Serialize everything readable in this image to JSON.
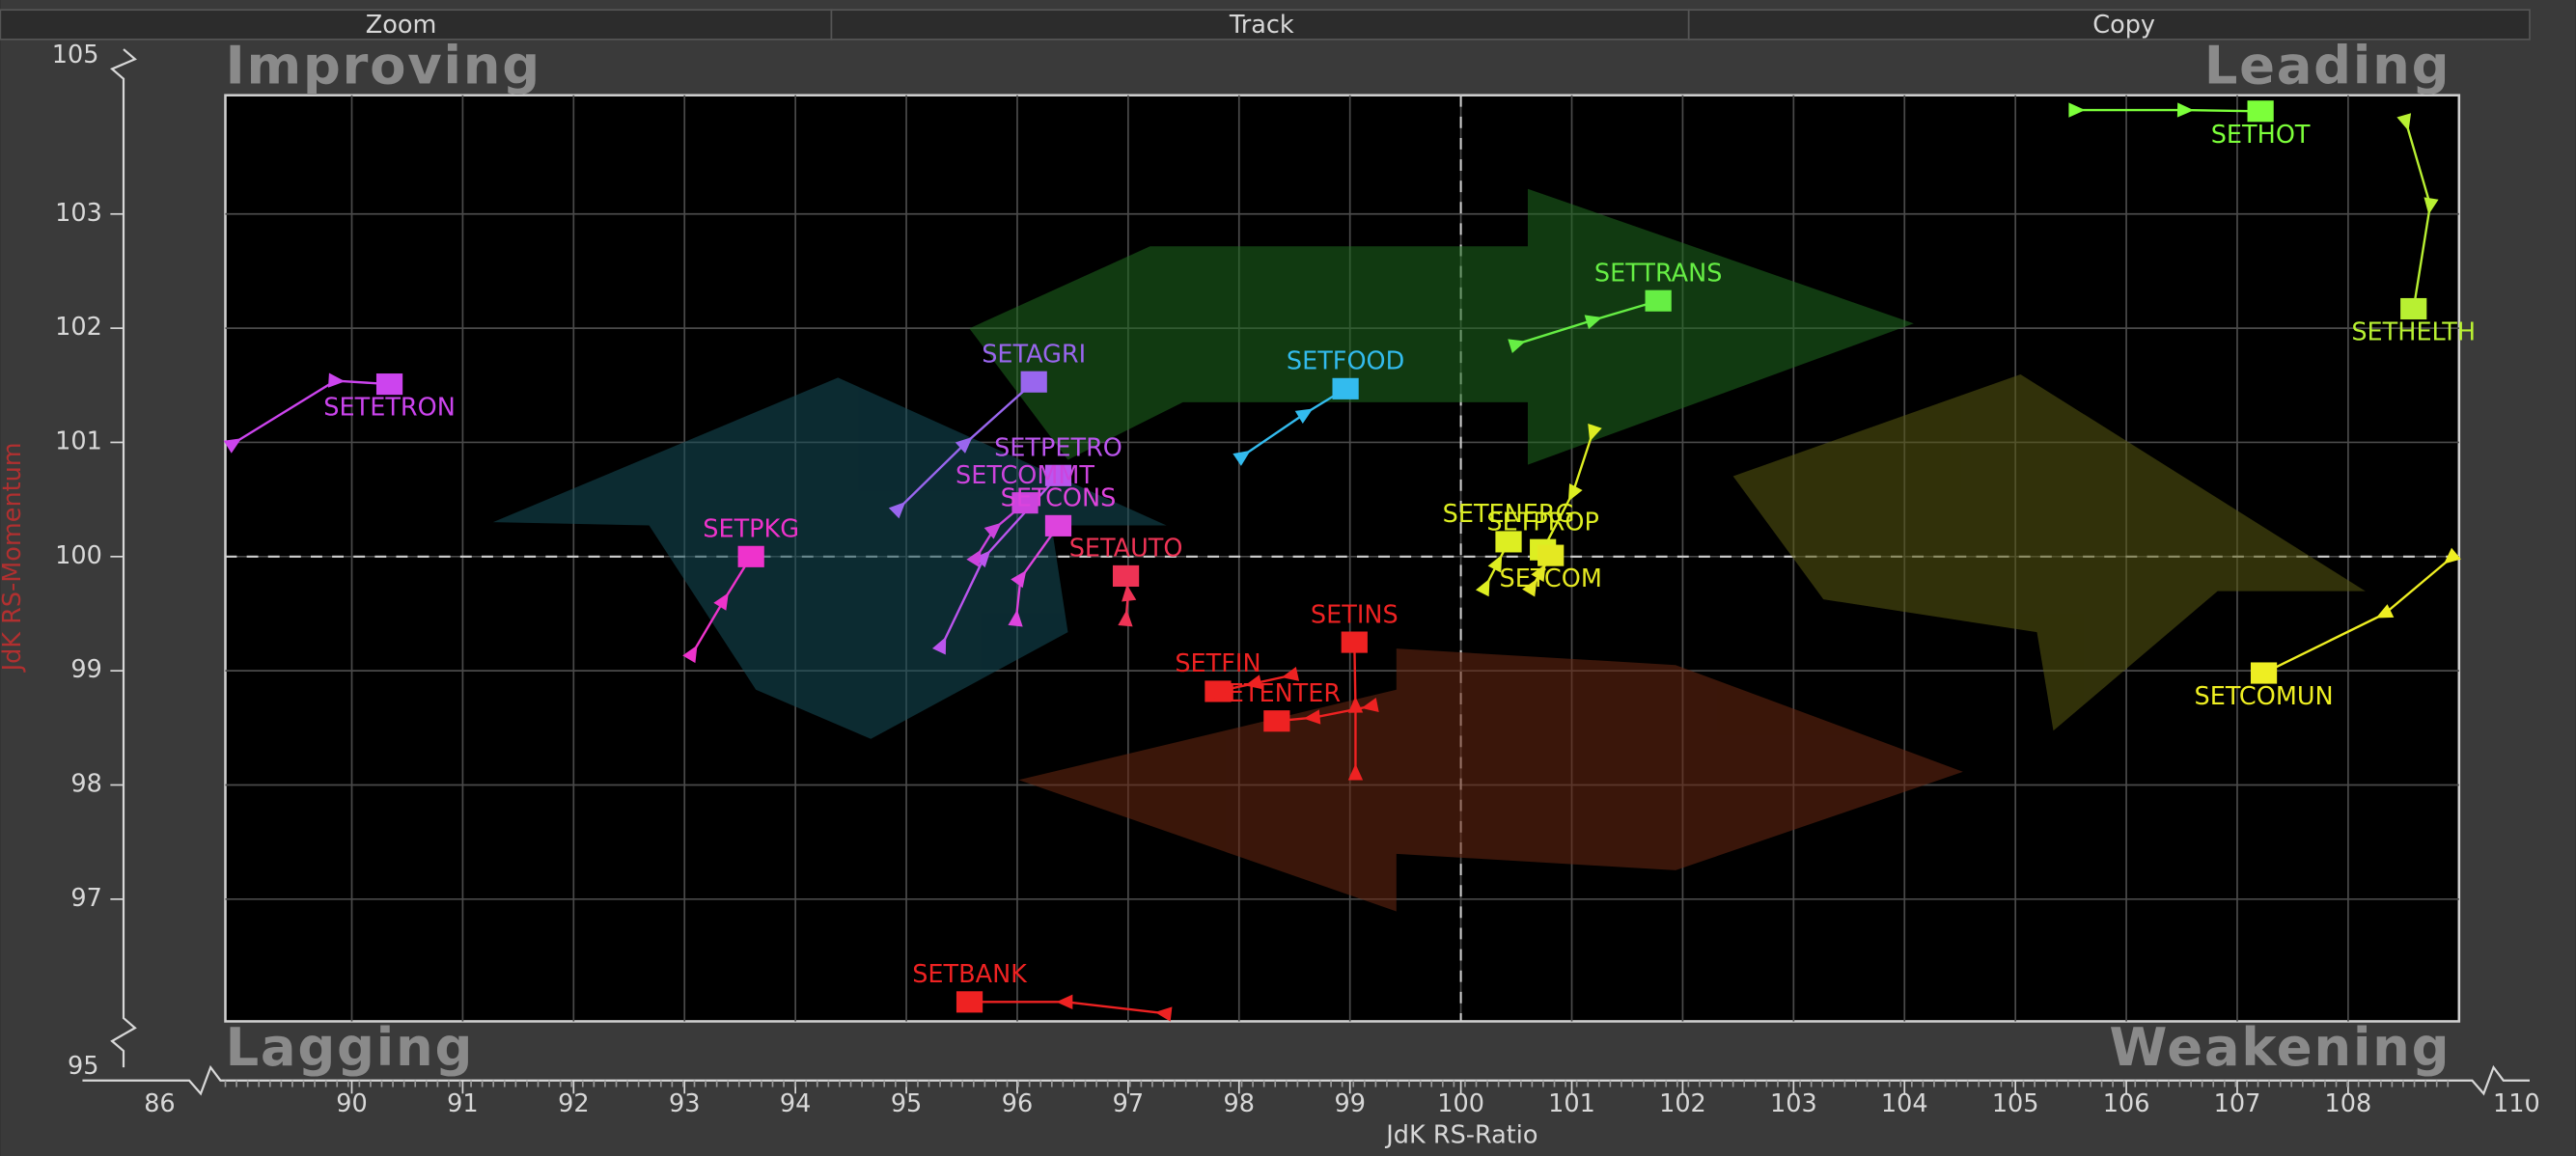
{
  "toolbar": [
    "Zoom",
    "Track",
    "Copy"
  ],
  "chart_data": {
    "type": "scatter",
    "xlabel": "JdK RS-Ratio",
    "ylabel": "JdK RS-Momentum",
    "quadrants": {
      "top_left": "Improving",
      "top_right": "Leading",
      "bottom_left": "Lagging",
      "bottom_right": "Weakening"
    },
    "xlim": [
      88.86,
      109.0
    ],
    "ylim": [
      95.93,
      104.04
    ],
    "xticks": [
      90,
      91,
      92,
      93,
      94,
      95,
      96,
      97,
      98,
      99,
      100,
      101,
      102,
      103,
      104,
      105,
      106,
      107,
      108
    ],
    "yticks": [
      97,
      98,
      99,
      100,
      101,
      102,
      103
    ],
    "x_break_labels": [
      86,
      110
    ],
    "y_break_labels": [
      95,
      105
    ],
    "reference_lines": {
      "x": 100,
      "y": 100
    },
    "grid": true,
    "series": [
      {
        "name": "SETHOT",
        "color": "#7cff3a",
        "label_position": "below",
        "x": [
          105.54,
          106.52,
          107.21
        ],
        "y": [
          103.91,
          103.91,
          103.9
        ]
      },
      {
        "name": "SETHELTH",
        "color": "#b8f032",
        "label_position": "below",
        "x": [
          108.52,
          108.74,
          108.59
        ],
        "y": [
          103.81,
          103.08,
          102.17
        ]
      },
      {
        "name": "SETTRANS",
        "color": "#66ee44",
        "label_position": "above",
        "x": [
          100.5,
          101.19,
          101.78
        ],
        "y": [
          101.86,
          102.07,
          102.24
        ]
      },
      {
        "name": "SETFOOD",
        "color": "#33bbee",
        "label_position": "above",
        "x": [
          98.03,
          98.59,
          98.96
        ],
        "y": [
          100.88,
          101.25,
          101.47
        ]
      },
      {
        "name": "SETAGRI",
        "color": "#9966ee",
        "label_position": "above",
        "x": [
          94.93,
          95.53,
          96.15
        ],
        "y": [
          100.42,
          100.99,
          101.53
        ]
      },
      {
        "name": "SETETRON",
        "color": "#cc44ee",
        "label_position": "below",
        "x": [
          88.93,
          89.85,
          90.34
        ],
        "y": [
          100.99,
          101.54,
          101.51
        ]
      },
      {
        "name": "SETPETRO",
        "color": "#bb55ee",
        "label_position": "above",
        "x": [
          95.32,
          95.7,
          96.37
        ],
        "y": [
          99.22,
          99.99,
          100.71
        ]
      },
      {
        "name": "SETCOMMT",
        "color": "#cc44dd",
        "label_position": "above",
        "x": [
          95.63,
          95.79,
          96.07
        ],
        "y": [
          99.99,
          100.24,
          100.47
        ]
      },
      {
        "name": "SETCONS",
        "color": "#dd44dd",
        "label_position": "above",
        "x": [
          95.99,
          96.03,
          96.37
        ],
        "y": [
          99.45,
          99.81,
          100.27
        ]
      },
      {
        "name": "SETPKG",
        "color": "#ee33cc",
        "label_position": "above",
        "x": [
          93.07,
          93.35,
          93.6
        ],
        "y": [
          99.15,
          99.61,
          100.0
        ]
      },
      {
        "name": "SETAUTO",
        "color": "#ee3355",
        "label_position": "above",
        "x": [
          96.98,
          97.0,
          96.98
        ],
        "y": [
          99.45,
          99.67,
          99.83
        ]
      },
      {
        "name": "SETINS",
        "color": "#ee2222",
        "label_position": "above",
        "x": [
          99.05,
          99.05,
          99.04
        ],
        "y": [
          98.1,
          98.69,
          99.25
        ]
      },
      {
        "name": "SETFIN",
        "color": "#ee2222",
        "label_position": "above",
        "x": [
          98.47,
          98.14,
          97.81
        ],
        "y": [
          98.96,
          98.89,
          98.82
        ]
      },
      {
        "name": "SETENTER",
        "color": "#ee2222",
        "label_position": "above",
        "x": [
          99.19,
          98.67,
          98.34
        ],
        "y": [
          98.69,
          98.59,
          98.56
        ]
      },
      {
        "name": "SETBANK",
        "color": "#ee2222",
        "label_position": "above",
        "x": [
          97.33,
          96.44,
          95.57
        ],
        "y": [
          96.0,
          96.1,
          96.1
        ]
      },
      {
        "name": "SETENERG",
        "color": "#ddee22",
        "label_position": "above",
        "x": [
          100.22,
          100.33,
          100.43
        ],
        "y": [
          99.73,
          99.94,
          100.13
        ]
      },
      {
        "name": "SETPROP",
        "color": "#ddee22",
        "label_position": "above",
        "x": [
          101.19,
          101.01,
          100.74
        ],
        "y": [
          101.09,
          100.56,
          100.06
        ]
      },
      {
        "name": "SETCOM",
        "color": "#e4e822",
        "label_position": "below",
        "x": [
          100.64,
          100.72,
          100.81
        ],
        "y": [
          99.73,
          99.86,
          100.01
        ]
      },
      {
        "name": "SETCOMUN",
        "color": "#eeee22",
        "label_position": "below",
        "x": [
          108.93,
          108.33,
          107.24
        ],
        "y": [
          99.99,
          99.5,
          98.98
        ]
      }
    ]
  }
}
